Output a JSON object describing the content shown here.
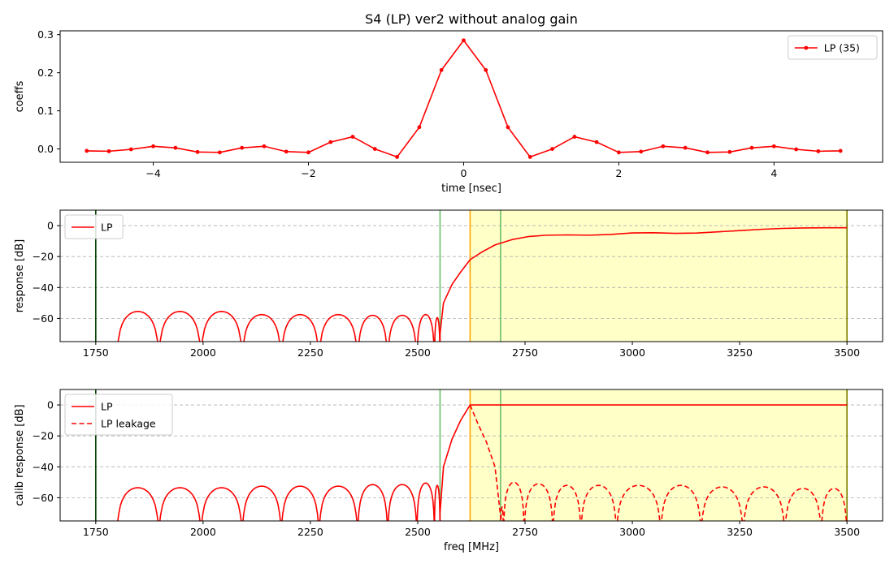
{
  "title": "S4 (LP)   ver2   without analog gain",
  "colors": {
    "series": "#ff0000",
    "passband_fill": "#ffffc8",
    "green_line": "#008000",
    "dark_green_line": "#004000",
    "orange_line": "#ffa500",
    "olive_line": "#808000",
    "grid": "#b0b0b0"
  },
  "chart_data": [
    {
      "type": "line",
      "name": "coefficients",
      "xlabel": "time [nsec]",
      "ylabel": "coeffs",
      "xlim": [
        -5.2,
        5.4
      ],
      "ylim": [
        -0.035,
        0.31
      ],
      "xticks": [
        -4,
        -2,
        0,
        2,
        4
      ],
      "xtick_labels": [
        "−4",
        "−2",
        "0",
        "2",
        "4"
      ],
      "yticks": [
        0.0,
        0.1,
        0.2,
        0.3
      ],
      "ytick_labels": [
        "0.0",
        "0.1",
        "0.2",
        "0.3"
      ],
      "grid": false,
      "legend_position": "top-right",
      "series": [
        {
          "name": "LP (35)",
          "marker": "dot",
          "x": [
            -4.857,
            -4.571,
            -4.286,
            -4.0,
            -3.714,
            -3.429,
            -3.143,
            -2.857,
            -2.571,
            -2.286,
            -2.0,
            -1.714,
            -1.429,
            -1.143,
            -0.857,
            -0.571,
            -0.286,
            0.0,
            0.286,
            0.571,
            0.857,
            1.143,
            1.429,
            1.714,
            2.0,
            2.286,
            2.571,
            2.857,
            3.143,
            3.429,
            3.714,
            4.0,
            4.286,
            4.571,
            4.857
          ],
          "y": [
            -0.005,
            -0.006,
            -0.001,
            0.007,
            0.003,
            -0.008,
            -0.009,
            0.003,
            0.007,
            -0.007,
            -0.009,
            0.018,
            0.032,
            0.0,
            -0.021,
            0.057,
            0.207,
            0.285,
            0.207,
            0.057,
            -0.021,
            0.0,
            0.032,
            0.018,
            -0.009,
            -0.007,
            0.007,
            0.003,
            -0.009,
            -0.008,
            0.003,
            0.007,
            -0.001,
            -0.006,
            -0.005
          ]
        }
      ]
    },
    {
      "type": "line",
      "name": "response",
      "xlabel": "",
      "ylabel": "response [dB]",
      "xlim": [
        1667,
        3583
      ],
      "ylim": [
        -75,
        10
      ],
      "xticks": [
        1750,
        2000,
        2250,
        2500,
        2750,
        3000,
        3250,
        3500
      ],
      "xtick_labels": [
        "1750",
        "2000",
        "2250",
        "2500",
        "2750",
        "3000",
        "3250",
        "3500"
      ],
      "yticks": [
        -60,
        -40,
        -20,
        0
      ],
      "ytick_labels": [
        "−60",
        "−40",
        "−20",
        "0"
      ],
      "grid": "horizontal-dashed",
      "legend_position": "top-left",
      "passband_region": [
        2622,
        3500
      ],
      "vertical_lines": [
        {
          "x": 1750,
          "color": "#004000"
        },
        {
          "x": 2552,
          "color": "#6abf6a"
        },
        {
          "x": 2622,
          "color": "#ffa500"
        },
        {
          "x": 2693,
          "color": "#6abf6a"
        },
        {
          "x": 3500,
          "color": "#808000"
        }
      ],
      "series": [
        {
          "name": "LP",
          "style": "solid",
          "stopband": {
            "x_start": 1750,
            "x_end": 2552,
            "nulls": [
              1799,
              1897,
              1995,
              2091,
              2182,
              2270,
              2360,
              2430,
              2498,
              2539,
              2552
            ],
            "peaks": [
              -55.5,
              -55.5,
              -55.5,
              -57.5,
              -57.5,
              -57.5,
              -58,
              -58,
              -57.5,
              -59.5
            ]
          },
          "passband": {
            "x": [
              2552,
              2560,
              2580,
              2600,
              2622,
              2650,
              2680,
              2720,
              2760,
              2800,
              2850,
              2900,
              2950,
              3000,
              3050,
              3100,
              3150,
              3200,
              3250,
              3300,
              3350,
              3400,
              3450,
              3500
            ],
            "y": [
              -70,
              -50,
              -38,
              -30,
              -22,
              -17,
              -12.5,
              -9,
              -7,
              -6.2,
              -6,
              -6.2,
              -5.7,
              -4.7,
              -4.6,
              -5,
              -4.8,
              -4,
              -3.2,
              -2.4,
              -1.8,
              -1.5,
              -1.4,
              -1.4
            ]
          }
        }
      ]
    },
    {
      "type": "line",
      "name": "calib-response",
      "xlabel": "freq [MHz]",
      "ylabel": "calib response [dB]",
      "xlim": [
        1667,
        3583
      ],
      "ylim": [
        -75,
        10
      ],
      "xticks": [
        1750,
        2000,
        2250,
        2500,
        2750,
        3000,
        3250,
        3500
      ],
      "xtick_labels": [
        "1750",
        "2000",
        "2250",
        "2500",
        "2750",
        "3000",
        "3250",
        "3500"
      ],
      "yticks": [
        -60,
        -40,
        -20,
        0
      ],
      "ytick_labels": [
        "−60",
        "−40",
        "−20",
        "0"
      ],
      "grid": "horizontal-dashed",
      "legend_position": "top-left",
      "passband_region": [
        2622,
        3500
      ],
      "vertical_lines": [
        {
          "x": 1750,
          "color": "#004000"
        },
        {
          "x": 2552,
          "color": "#6abf6a"
        },
        {
          "x": 2622,
          "color": "#ffa500"
        },
        {
          "x": 2693,
          "color": "#6abf6a"
        },
        {
          "x": 3500,
          "color": "#808000"
        }
      ],
      "series": [
        {
          "name": "LP",
          "style": "solid",
          "stopband": {
            "x_start": 1750,
            "x_end": 2552,
            "nulls": [
              1799,
              1897,
              1995,
              2091,
              2182,
              2270,
              2360,
              2430,
              2498,
              2539,
              2552
            ],
            "peaks": [
              -53.5,
              -53.5,
              -53.5,
              -52.5,
              -52.5,
              -52.5,
              -51.5,
              -51.5,
              -50.5,
              -52
            ]
          },
          "passband": {
            "x": [
              2552,
              2560,
              2580,
              2600,
              2622,
              2640,
              3500
            ],
            "y": [
              -70,
              -40,
              -22,
              -10,
              0,
              0,
              0
            ]
          }
        },
        {
          "name": "LP leakage",
          "style": "dashed",
          "rolloff": {
            "x": [
              2622,
              2640,
              2660,
              2680,
              2693
            ],
            "y": [
              0,
              -12,
              -24,
              -40,
              -72
            ]
          },
          "stopband": {
            "x_start": 2693,
            "x_end": 3500,
            "nulls": [
              2693,
              2700,
              2748,
              2815,
              2880,
              2963,
              3066,
              3160,
              3258,
              3355,
              3440,
              3500
            ],
            "peaks": [
              -66,
              -50,
              -51,
              -52,
              -52,
              -52,
              -52,
              -53,
              -53,
              -54,
              -54
            ]
          }
        }
      ]
    }
  ]
}
